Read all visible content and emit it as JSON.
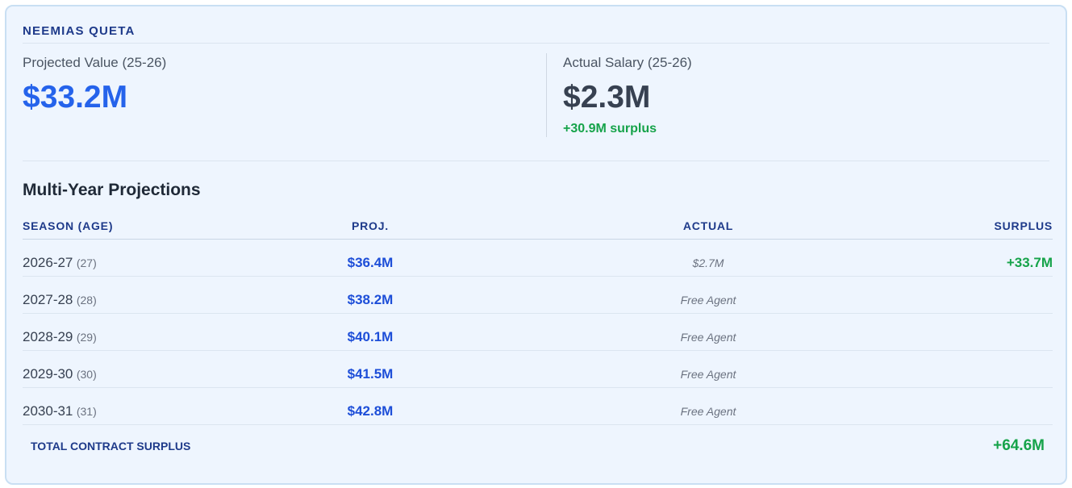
{
  "player": {
    "name": "NEEMIAS QUETA"
  },
  "summary": {
    "projected_label": "Projected Value (25-26)",
    "projected_value": "$33.2M",
    "actual_label": "Actual Salary (25-26)",
    "actual_value": "$2.3M",
    "surplus_note": "+30.9M surplus"
  },
  "projections": {
    "title": "Multi-Year Projections",
    "headers": {
      "season": "SEASON (AGE)",
      "proj": "PROJ.",
      "actual": "ACTUAL",
      "surplus": "SURPLUS"
    },
    "rows": [
      {
        "season": "2026-27",
        "age": "(27)",
        "proj": "$36.4M",
        "actual": "$2.7M",
        "surplus": "+33.7M"
      },
      {
        "season": "2027-28",
        "age": "(28)",
        "proj": "$38.2M",
        "actual": "Free Agent",
        "surplus": ""
      },
      {
        "season": "2028-29",
        "age": "(29)",
        "proj": "$40.1M",
        "actual": "Free Agent",
        "surplus": ""
      },
      {
        "season": "2029-30",
        "age": "(30)",
        "proj": "$41.5M",
        "actual": "Free Agent",
        "surplus": ""
      },
      {
        "season": "2030-31",
        "age": "(31)",
        "proj": "$42.8M",
        "actual": "Free Agent",
        "surplus": ""
      }
    ],
    "total_label": "TOTAL CONTRACT SURPLUS",
    "total_value": "+64.6M"
  },
  "colors": {
    "accent_blue": "#2563eb",
    "header_navy": "#1e3a8a",
    "surplus_green": "#16a34a",
    "card_background": "#eef5fe"
  }
}
